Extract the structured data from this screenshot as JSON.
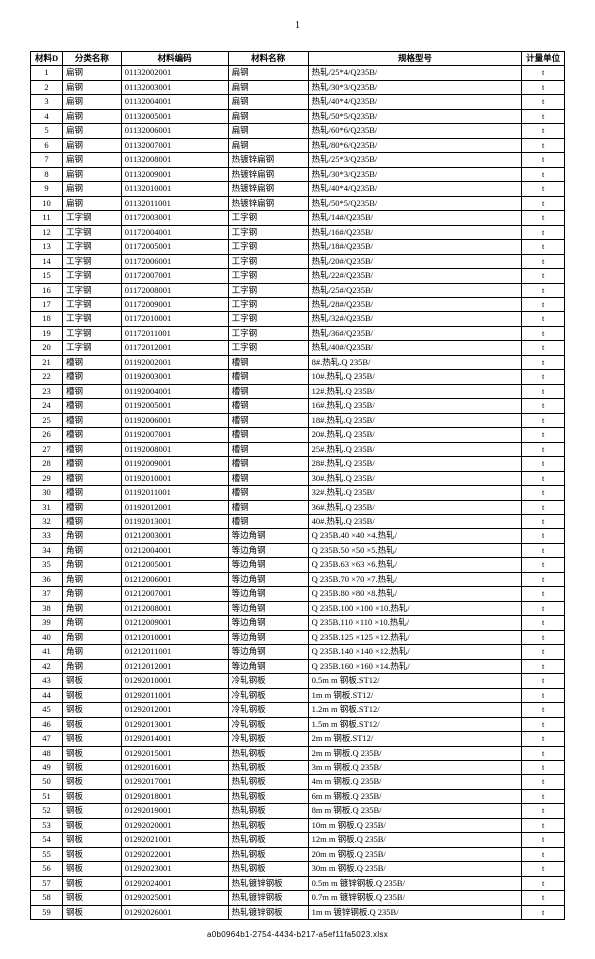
{
  "page_number": "1",
  "footer": "a0b0964b1-2754-4434-b217-a5ef11fa5023.xlsx",
  "table": {
    "columns": [
      "材料D",
      "分类名称",
      "材料编码",
      "材料名称",
      "规格型号",
      "计量单位"
    ],
    "rows": [
      [
        "1",
        "扁钢",
        "01132002001",
        "扁钢",
        "热轧/25*4/Q235B/",
        "t"
      ],
      [
        "2",
        "扁钢",
        "01132003001",
        "扁钢",
        "热轧/30*3/Q235B/",
        "t"
      ],
      [
        "3",
        "扁钢",
        "01132004001",
        "扁钢",
        "热轧/40*4/Q235B/",
        "t"
      ],
      [
        "4",
        "扁钢",
        "01132005001",
        "扁钢",
        "热轧/50*5/Q235B/",
        "t"
      ],
      [
        "5",
        "扁钢",
        "01132006001",
        "扁钢",
        "热轧/60*6/Q235B/",
        "t"
      ],
      [
        "6",
        "扁钢",
        "01132007001",
        "扁钢",
        "热轧/80*6/Q235B/",
        "t"
      ],
      [
        "7",
        "扁钢",
        "01132008001",
        "热镀锌扁钢",
        "热轧/25*3/Q235B/",
        "t"
      ],
      [
        "8",
        "扁钢",
        "01132009001",
        "热镀锌扁钢",
        "热轧/30*3/Q235B/",
        "t"
      ],
      [
        "9",
        "扁钢",
        "01132010001",
        "热镀锌扁钢",
        "热轧/40*4/Q235B/",
        "t"
      ],
      [
        "10",
        "扁钢",
        "01132011001",
        "热镀锌扁钢",
        "热轧/50*5/Q235B/",
        "t"
      ],
      [
        "11",
        "工字钢",
        "01172003001",
        "工字钢",
        "热轧/14#/Q235B/",
        "t"
      ],
      [
        "12",
        "工字钢",
        "01172004001",
        "工字钢",
        "热轧/16#/Q235B/",
        "t"
      ],
      [
        "13",
        "工字钢",
        "01172005001",
        "工字钢",
        "热轧/18#/Q235B/",
        "t"
      ],
      [
        "14",
        "工字钢",
        "01172006001",
        "工字钢",
        "热轧/20#/Q235B/",
        "t"
      ],
      [
        "15",
        "工字钢",
        "01172007001",
        "工字钢",
        "热轧/22#/Q235B/",
        "t"
      ],
      [
        "16",
        "工字钢",
        "01172008001",
        "工字钢",
        "热轧/25#/Q235B/",
        "t"
      ],
      [
        "17",
        "工字钢",
        "01172009001",
        "工字钢",
        "热轧/28#/Q235B/",
        "t"
      ],
      [
        "18",
        "工字钢",
        "01172010001",
        "工字钢",
        "热轧/32#/Q235B/",
        "t"
      ],
      [
        "19",
        "工字钢",
        "01172011001",
        "工字钢",
        "热轧/36#/Q235B/",
        "t"
      ],
      [
        "20",
        "工字钢",
        "01172012001",
        "工字钢",
        "热轧/40#/Q235B/",
        "t"
      ],
      [
        "21",
        "槽钢",
        "01192002001",
        "槽钢",
        "8#.热轧.Q 235B/",
        "t"
      ],
      [
        "22",
        "槽钢",
        "01192003001",
        "槽钢",
        "10#.热轧.Q 235B/",
        "t"
      ],
      [
        "23",
        "槽钢",
        "01192004001",
        "槽钢",
        "12#.热轧.Q 235B/",
        "t"
      ],
      [
        "24",
        "槽钢",
        "01192005001",
        "槽钢",
        "16#.热轧.Q 235B/",
        "t"
      ],
      [
        "25",
        "槽钢",
        "01192006001",
        "槽钢",
        "18#.热轧.Q 235B/",
        "t"
      ],
      [
        "26",
        "槽钢",
        "01192007001",
        "槽钢",
        "20#.热轧.Q 235B/",
        "t"
      ],
      [
        "27",
        "槽钢",
        "01192008001",
        "槽钢",
        "25#.热轧.Q 235B/",
        "t"
      ],
      [
        "28",
        "槽钢",
        "01192009001",
        "槽钢",
        "28#.热轧.Q 235B/",
        "t"
      ],
      [
        "29",
        "槽钢",
        "01192010001",
        "槽钢",
        "30#.热轧.Q 235B/",
        "t"
      ],
      [
        "30",
        "槽钢",
        "01192011001",
        "槽钢",
        "32#.热轧.Q 235B/",
        "t"
      ],
      [
        "31",
        "槽钢",
        "01192012001",
        "槽钢",
        "36#.热轧.Q 235B/",
        "t"
      ],
      [
        "32",
        "槽钢",
        "01192013001",
        "槽钢",
        "40#.热轧.Q 235B/",
        "t"
      ],
      [
        "33",
        "角钢",
        "01212003001",
        "等边角钢",
        "Q 235B.40 ×40 ×4.热轧/",
        "t"
      ],
      [
        "34",
        "角钢",
        "01212004001",
        "等边角钢",
        "Q 235B.50 ×50 ×5.热轧/",
        "t"
      ],
      [
        "35",
        "角钢",
        "01212005001",
        "等边角钢",
        "Q 235B.63 ×63 ×6.热轧/",
        "t"
      ],
      [
        "36",
        "角钢",
        "01212006001",
        "等边角钢",
        "Q 235B.70 ×70 ×7.热轧/",
        "t"
      ],
      [
        "37",
        "角钢",
        "01212007001",
        "等边角钢",
        "Q 235B.80 ×80 ×8.热轧/",
        "t"
      ],
      [
        "38",
        "角钢",
        "01212008001",
        "等边角钢",
        "Q 235B.100 ×100 ×10.热轧/",
        "t"
      ],
      [
        "39",
        "角钢",
        "01212009001",
        "等边角钢",
        "Q 235B.110 ×110 ×10.热轧/",
        "t"
      ],
      [
        "40",
        "角钢",
        "01212010001",
        "等边角钢",
        "Q 235B.125 ×125 ×12.热轧/",
        "t"
      ],
      [
        "41",
        "角钢",
        "01212011001",
        "等边角钢",
        "Q 235B.140 ×140 ×12.热轧/",
        "t"
      ],
      [
        "42",
        "角钢",
        "01212012001",
        "等边角钢",
        "Q 235B.160 ×160 ×14.热轧/",
        "t"
      ],
      [
        "43",
        "钢板",
        "01292010001",
        "冷轧钢板",
        "0.5m m 钢板.ST12/",
        "t"
      ],
      [
        "44",
        "钢板",
        "01292011001",
        "冷轧钢板",
        "1m m 钢板.ST12/",
        "t"
      ],
      [
        "45",
        "钢板",
        "01292012001",
        "冷轧钢板",
        "1.2m m 钢板.ST12/",
        "t"
      ],
      [
        "46",
        "钢板",
        "01292013001",
        "冷轧钢板",
        "1.5m m 钢板.ST12/",
        "t"
      ],
      [
        "47",
        "钢板",
        "01292014001",
        "冷轧钢板",
        "2m m 钢板.ST12/",
        "t"
      ],
      [
        "48",
        "钢板",
        "01292015001",
        "热轧钢板",
        "2m m 钢板.Q 235B/",
        "t"
      ],
      [
        "49",
        "钢板",
        "01292016001",
        "热轧钢板",
        "3m m 钢板.Q 235B/",
        "t"
      ],
      [
        "50",
        "钢板",
        "01292017001",
        "热轧钢板",
        "4m m 钢板.Q 235B/",
        "t"
      ],
      [
        "51",
        "钢板",
        "01292018001",
        "热轧钢板",
        "6m m 钢板.Q 235B/",
        "t"
      ],
      [
        "52",
        "钢板",
        "01292019001",
        "热轧钢板",
        "8m m 钢板.Q 235B/",
        "t"
      ],
      [
        "53",
        "钢板",
        "01292020001",
        "热轧钢板",
        "10m m 钢板.Q 235B/",
        "t"
      ],
      [
        "54",
        "钢板",
        "01292021001",
        "热轧钢板",
        "12m m 钢板.Q 235B/",
        "t"
      ],
      [
        "55",
        "钢板",
        "01292022001",
        "热轧钢板",
        "20m m 钢板.Q 235B/",
        "t"
      ],
      [
        "56",
        "钢板",
        "01292023001",
        "热轧钢板",
        "30m m 钢板.Q 235B/",
        "t"
      ],
      [
        "57",
        "钢板",
        "01292024001",
        "热轧镀锌钢板",
        "0.5m m 镀锌钢板.Q 235B/",
        "t"
      ],
      [
        "58",
        "钢板",
        "01292025001",
        "热轧镀锌钢板",
        "0.7m m 镀锌钢板.Q 235B/",
        "t"
      ],
      [
        "59",
        "钢板",
        "01292026001",
        "热轧镀锌钢板",
        "1m m 镀锌钢板.Q 235B/",
        "t"
      ]
    ]
  }
}
